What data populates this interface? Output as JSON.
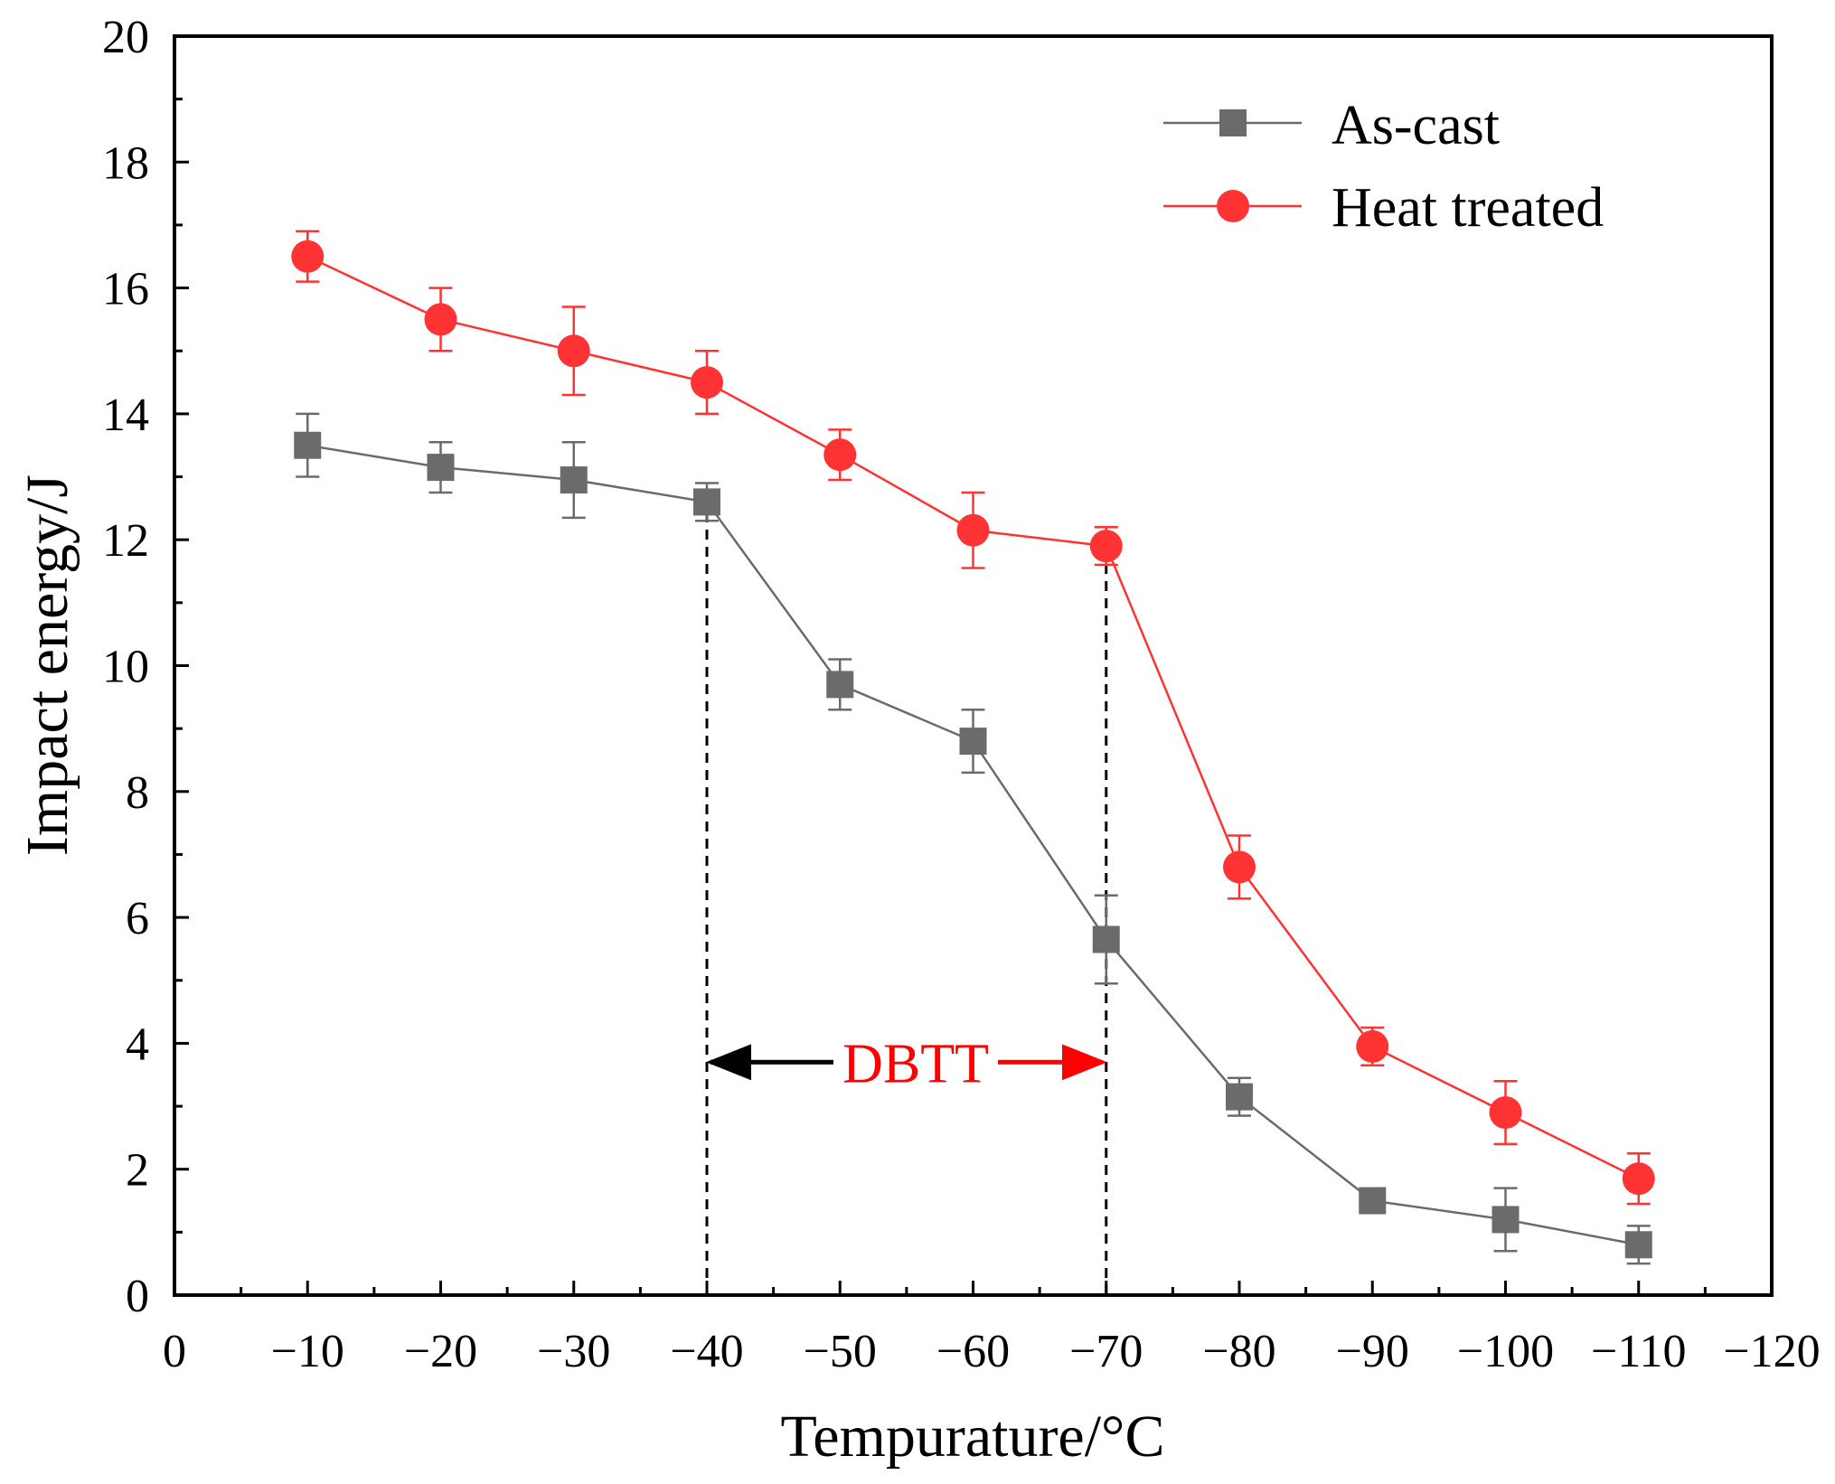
{
  "chart_data": {
    "type": "line",
    "title": "",
    "xlabel": "Tempurature/°C",
    "ylabel": "Impact energy/J",
    "xlim": [
      0,
      -120
    ],
    "ylim": [
      0,
      20
    ],
    "x_ticks": [
      0,
      -10,
      -20,
      -30,
      -40,
      -50,
      -60,
      -70,
      -80,
      -90,
      -100,
      -110,
      -120
    ],
    "x_tick_labels": [
      "0",
      "−10",
      "−20",
      "−30",
      "−40",
      "−50",
      "−60",
      "−70",
      "−80",
      "−90",
      "−100",
      "−110",
      "−120"
    ],
    "y_ticks": [
      0,
      2,
      4,
      6,
      8,
      10,
      12,
      14,
      16,
      18,
      20
    ],
    "y_tick_labels": [
      "0",
      "2",
      "4",
      "6",
      "8",
      "10",
      "12",
      "14",
      "16",
      "18",
      "20"
    ],
    "legend_position": "top-right",
    "grid": false,
    "series": [
      {
        "name": "As-cast",
        "color": "#6b6b6b",
        "marker": "square",
        "x": [
          -10,
          -20,
          -30,
          -40,
          -50,
          -60,
          -70,
          -80,
          -90,
          -100,
          -110
        ],
        "values": [
          13.5,
          13.15,
          12.95,
          12.6,
          9.7,
          8.8,
          5.65,
          3.15,
          1.5,
          1.2,
          0.8
        ],
        "errors": [
          0.5,
          0.4,
          0.6,
          0.3,
          0.4,
          0.5,
          0.7,
          0.3,
          0.1,
          0.5,
          0.3
        ]
      },
      {
        "name": "Heat treated",
        "color": "#ff3333",
        "marker": "circle",
        "x": [
          -10,
          -20,
          -30,
          -40,
          -50,
          -60,
          -70,
          -80,
          -90,
          -100,
          -110
        ],
        "values": [
          16.5,
          15.5,
          15.0,
          14.5,
          13.35,
          12.15,
          11.9,
          6.8,
          3.95,
          2.9,
          1.85
        ],
        "errors": [
          0.4,
          0.5,
          0.7,
          0.5,
          0.4,
          0.6,
          0.3,
          0.5,
          0.3,
          0.5,
          0.4
        ]
      }
    ],
    "annotation": {
      "text": "DBTT",
      "color": "#ff0000",
      "y": 3.7,
      "from_x": -40,
      "to_x": -70,
      "dashed_lines": [
        {
          "x": -40,
          "y_top": 12.6
        },
        {
          "x": -70,
          "y_top": 11.9
        }
      ]
    }
  }
}
